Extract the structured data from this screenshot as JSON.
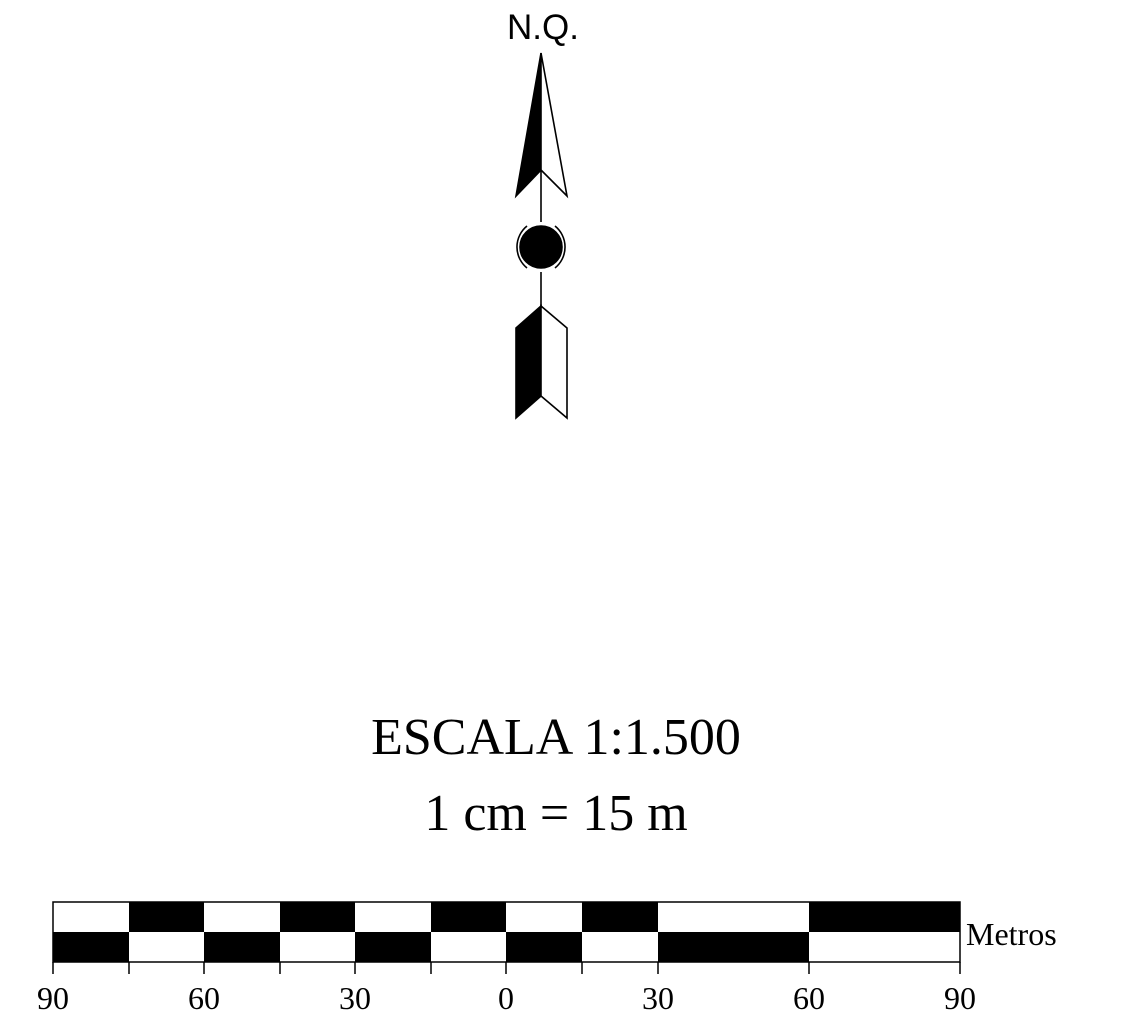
{
  "north_arrow": {
    "label": "N.Q.",
    "icon": "north-arrow-icon"
  },
  "scale": {
    "title": "ESCALA 1:1.500",
    "equivalence": "1 cm = 15 m",
    "unit_label": "Metros",
    "tick_labels": [
      "90",
      "60",
      "30",
      "0",
      "30",
      "60",
      "90"
    ],
    "colors": {
      "dark": "#000000",
      "light": "#ffffff"
    }
  }
}
